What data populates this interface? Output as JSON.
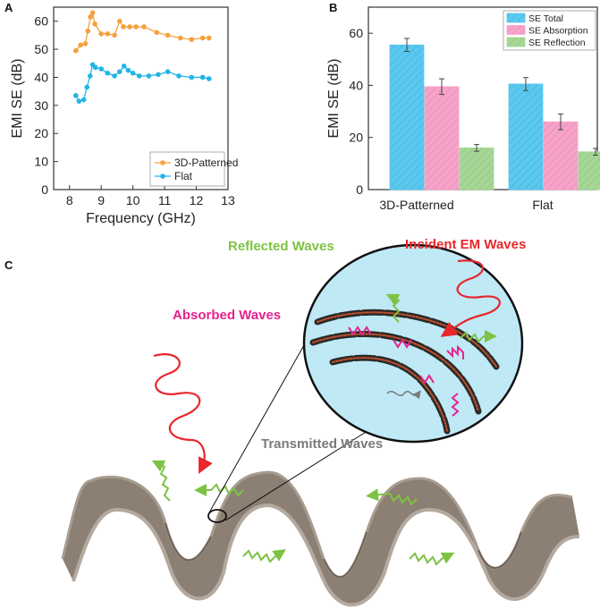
{
  "panels": {
    "a": "A",
    "b": "B",
    "c": "C"
  },
  "chart_data": [
    {
      "type": "line",
      "panel": "A",
      "xlabel": "Frequency (GHz)",
      "ylabel": "EMI SE (dB)",
      "xlim": [
        7.5,
        13
      ],
      "ylim": [
        0,
        65
      ],
      "xticks": [
        "8",
        "9",
        "10",
        "11",
        "12",
        "13"
      ],
      "yticks": [
        "0",
        "10",
        "20",
        "30",
        "40",
        "50",
        "60"
      ],
      "legend_position": "bottom-right",
      "grid": false,
      "series": [
        {
          "name": "3D-Patterned",
          "color": "#f5a13c",
          "x": [
            8.2,
            8.35,
            8.5,
            8.58,
            8.66,
            8.73,
            8.8,
            9.0,
            9.2,
            9.42,
            9.58,
            9.7,
            9.9,
            10.1,
            10.35,
            10.75,
            11.1,
            11.5,
            11.85,
            12.2,
            12.4
          ],
          "y": [
            49.5,
            51.5,
            52,
            56.5,
            61.5,
            63,
            59,
            55.5,
            55.5,
            55,
            60,
            58,
            58,
            58,
            58,
            56,
            55,
            54,
            53.5,
            54,
            54
          ]
        },
        {
          "name": "Flat",
          "color": "#22b5e6",
          "x": [
            8.2,
            8.3,
            8.45,
            8.55,
            8.65,
            8.73,
            8.82,
            9.0,
            9.2,
            9.42,
            9.58,
            9.72,
            9.85,
            10.0,
            10.2,
            10.5,
            10.8,
            11.1,
            11.45,
            11.85,
            12.2,
            12.4
          ],
          "y": [
            33.5,
            31.5,
            32,
            36.5,
            40.5,
            44.5,
            43.5,
            43,
            41.5,
            40.5,
            42,
            44,
            42.5,
            41.5,
            40.5,
            40.5,
            41,
            42,
            40.5,
            40,
            40,
            39.5
          ]
        }
      ]
    },
    {
      "type": "bar",
      "panel": "B",
      "xlabel": "",
      "ylabel": "EMI SE (dB)",
      "ylim": [
        0,
        70
      ],
      "yticks": [
        "0",
        "20",
        "40",
        "60"
      ],
      "categories": [
        "3D-Patterned",
        "Flat"
      ],
      "legend_position": "top-right",
      "series": [
        {
          "name": "SE Total",
          "color": "#5bc8ef",
          "values": [
            55.5,
            40.5
          ],
          "errors": [
            2.5,
            2.5
          ]
        },
        {
          "name": "SE Absorption",
          "color": "#f6a3c9",
          "values": [
            39.5,
            26
          ],
          "errors": [
            3,
            3
          ]
        },
        {
          "name": "SE Reflection",
          "color": "#a6d796",
          "values": [
            16,
            14.5
          ],
          "errors": [
            1.3,
            1.3
          ]
        }
      ]
    }
  ],
  "diagram": {
    "labels": {
      "reflected": "Reflected Waves",
      "incident": "Incident EM Waves",
      "absorbed": "Absorbed Waves",
      "transmitted": "Transmitted Waves"
    },
    "colors": {
      "reflected": "#7dc242",
      "incident": "#e8262b",
      "absorbed": "#e6238e",
      "transmitted": "#7a7a7a",
      "surface": "#8c7f73",
      "zoom_bg": "#bfe9f5"
    }
  }
}
